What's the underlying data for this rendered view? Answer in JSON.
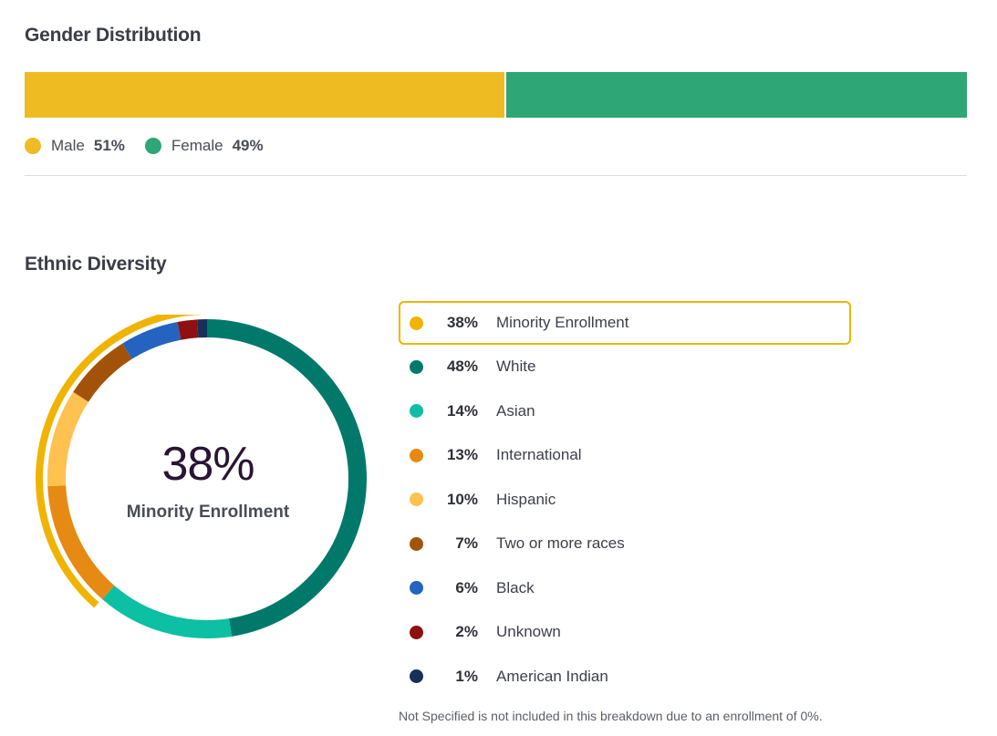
{
  "gender": {
    "title": "Gender Distribution",
    "items": [
      {
        "label": "Male",
        "pct": "51%",
        "value": 51,
        "color": "#efbb22"
      },
      {
        "label": "Female",
        "pct": "49%",
        "value": 49,
        "color": "#2ea675"
      }
    ]
  },
  "ethnic": {
    "title": "Ethnic Diversity",
    "center_value": "38%",
    "center_label": "Minority Enrollment",
    "footnote": "Not Specified is not included in this breakdown due to an enrollment of 0%.",
    "legend": [
      {
        "pct": "38%",
        "label": "Minority Enrollment",
        "color": "#f0b400",
        "highlight": true
      },
      {
        "pct": "48%",
        "label": "White",
        "color": "#00796b"
      },
      {
        "pct": "14%",
        "label": "Asian",
        "color": "#0dbfa3"
      },
      {
        "pct": "13%",
        "label": "International",
        "color": "#e68a13"
      },
      {
        "pct": "10%",
        "label": "Hispanic",
        "color": "#ffc150"
      },
      {
        "pct": "7%",
        "label": "Two or more races",
        "color": "#a3520a"
      },
      {
        "pct": "6%",
        "label": "Black",
        "color": "#2563c0"
      },
      {
        "pct": "2%",
        "label": "Unknown",
        "color": "#8f1010"
      },
      {
        "pct": "1%",
        "label": "American Indian",
        "color": "#17305a"
      }
    ]
  },
  "chart_data": [
    {
      "type": "bar",
      "title": "Gender Distribution",
      "categories": [
        "Male",
        "Female"
      ],
      "values": [
        51,
        49
      ],
      "colors": [
        "#efbb22",
        "#2ea675"
      ],
      "orientation": "horizontal-stacked"
    },
    {
      "type": "pie",
      "title": "Ethnic Diversity",
      "donut": true,
      "categories": [
        "White",
        "Asian",
        "International",
        "Hispanic",
        "Two or more races",
        "Black",
        "Unknown",
        "American Indian"
      ],
      "values": [
        48,
        14,
        13,
        10,
        7,
        6,
        2,
        1
      ],
      "colors": [
        "#00796b",
        "#0dbfa3",
        "#e68a13",
        "#ffc150",
        "#a3520a",
        "#2563c0",
        "#8f1010",
        "#17305a"
      ],
      "highlight": {
        "label": "Minority Enrollment",
        "value": 38,
        "color": "#f0b400"
      }
    }
  ]
}
